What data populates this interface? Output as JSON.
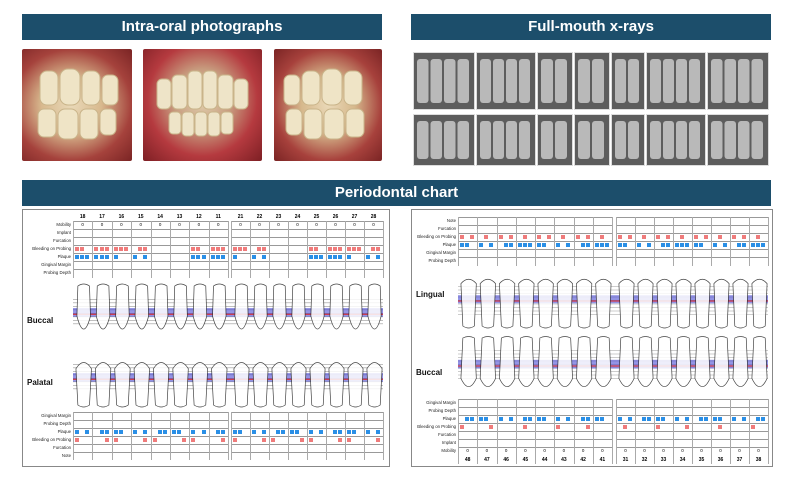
{
  "sections": {
    "photos_title": "Intra-oral photographs",
    "xrays_title": "Full-mouth x-rays",
    "perio_title": "Periodontal chart"
  },
  "upper_chart": {
    "upper_teeth_left": [
      "18",
      "17",
      "16",
      "15",
      "14",
      "13",
      "12",
      "11"
    ],
    "upper_teeth_right": [
      "21",
      "22",
      "23",
      "24",
      "25",
      "26",
      "27",
      "28"
    ],
    "upper_top_rows": [
      "Mobility",
      "Implant",
      "Furcation",
      "Bleeding on Probing",
      "Plaque",
      "Gingival Margin",
      "Probing Depth"
    ],
    "upper_bottom_rows": [
      "Gingival Margin",
      "Probing Depth",
      "Plaque",
      "Bleeding on Probing",
      "Furcation",
      "Note"
    ],
    "buccal_label": "Buccal",
    "palatal_label": "Palatal",
    "mobility": [
      "0",
      "0",
      "0",
      "0",
      "0",
      "0",
      "0",
      "0",
      "0",
      "0",
      "0",
      "0",
      "0",
      "0",
      "0",
      "0"
    ]
  },
  "lower_chart": {
    "lower_top_rows": [
      "Note",
      "Furcation",
      "Bleeding on Probing",
      "Plaque",
      "Gingival Margin",
      "Probing Depth"
    ],
    "lower_bottom_rows": [
      "Gingival Margin",
      "Probing Depth",
      "Plaque",
      "Bleeding on Probing",
      "Furcation",
      "Implant",
      "Mobility"
    ],
    "lingual_label": "Lingual",
    "buccal_label": "Buccal",
    "lower_teeth_left": [
      "48",
      "47",
      "46",
      "45",
      "44",
      "43",
      "42",
      "41"
    ],
    "lower_teeth_right": [
      "31",
      "32",
      "33",
      "34",
      "35",
      "36",
      "37",
      "38"
    ],
    "mobility": [
      "0",
      "0",
      "0",
      "0",
      "0",
      "0",
      "0",
      "0",
      "0",
      "0",
      "0",
      "0",
      "0",
      "0",
      "0",
      "0"
    ]
  }
}
